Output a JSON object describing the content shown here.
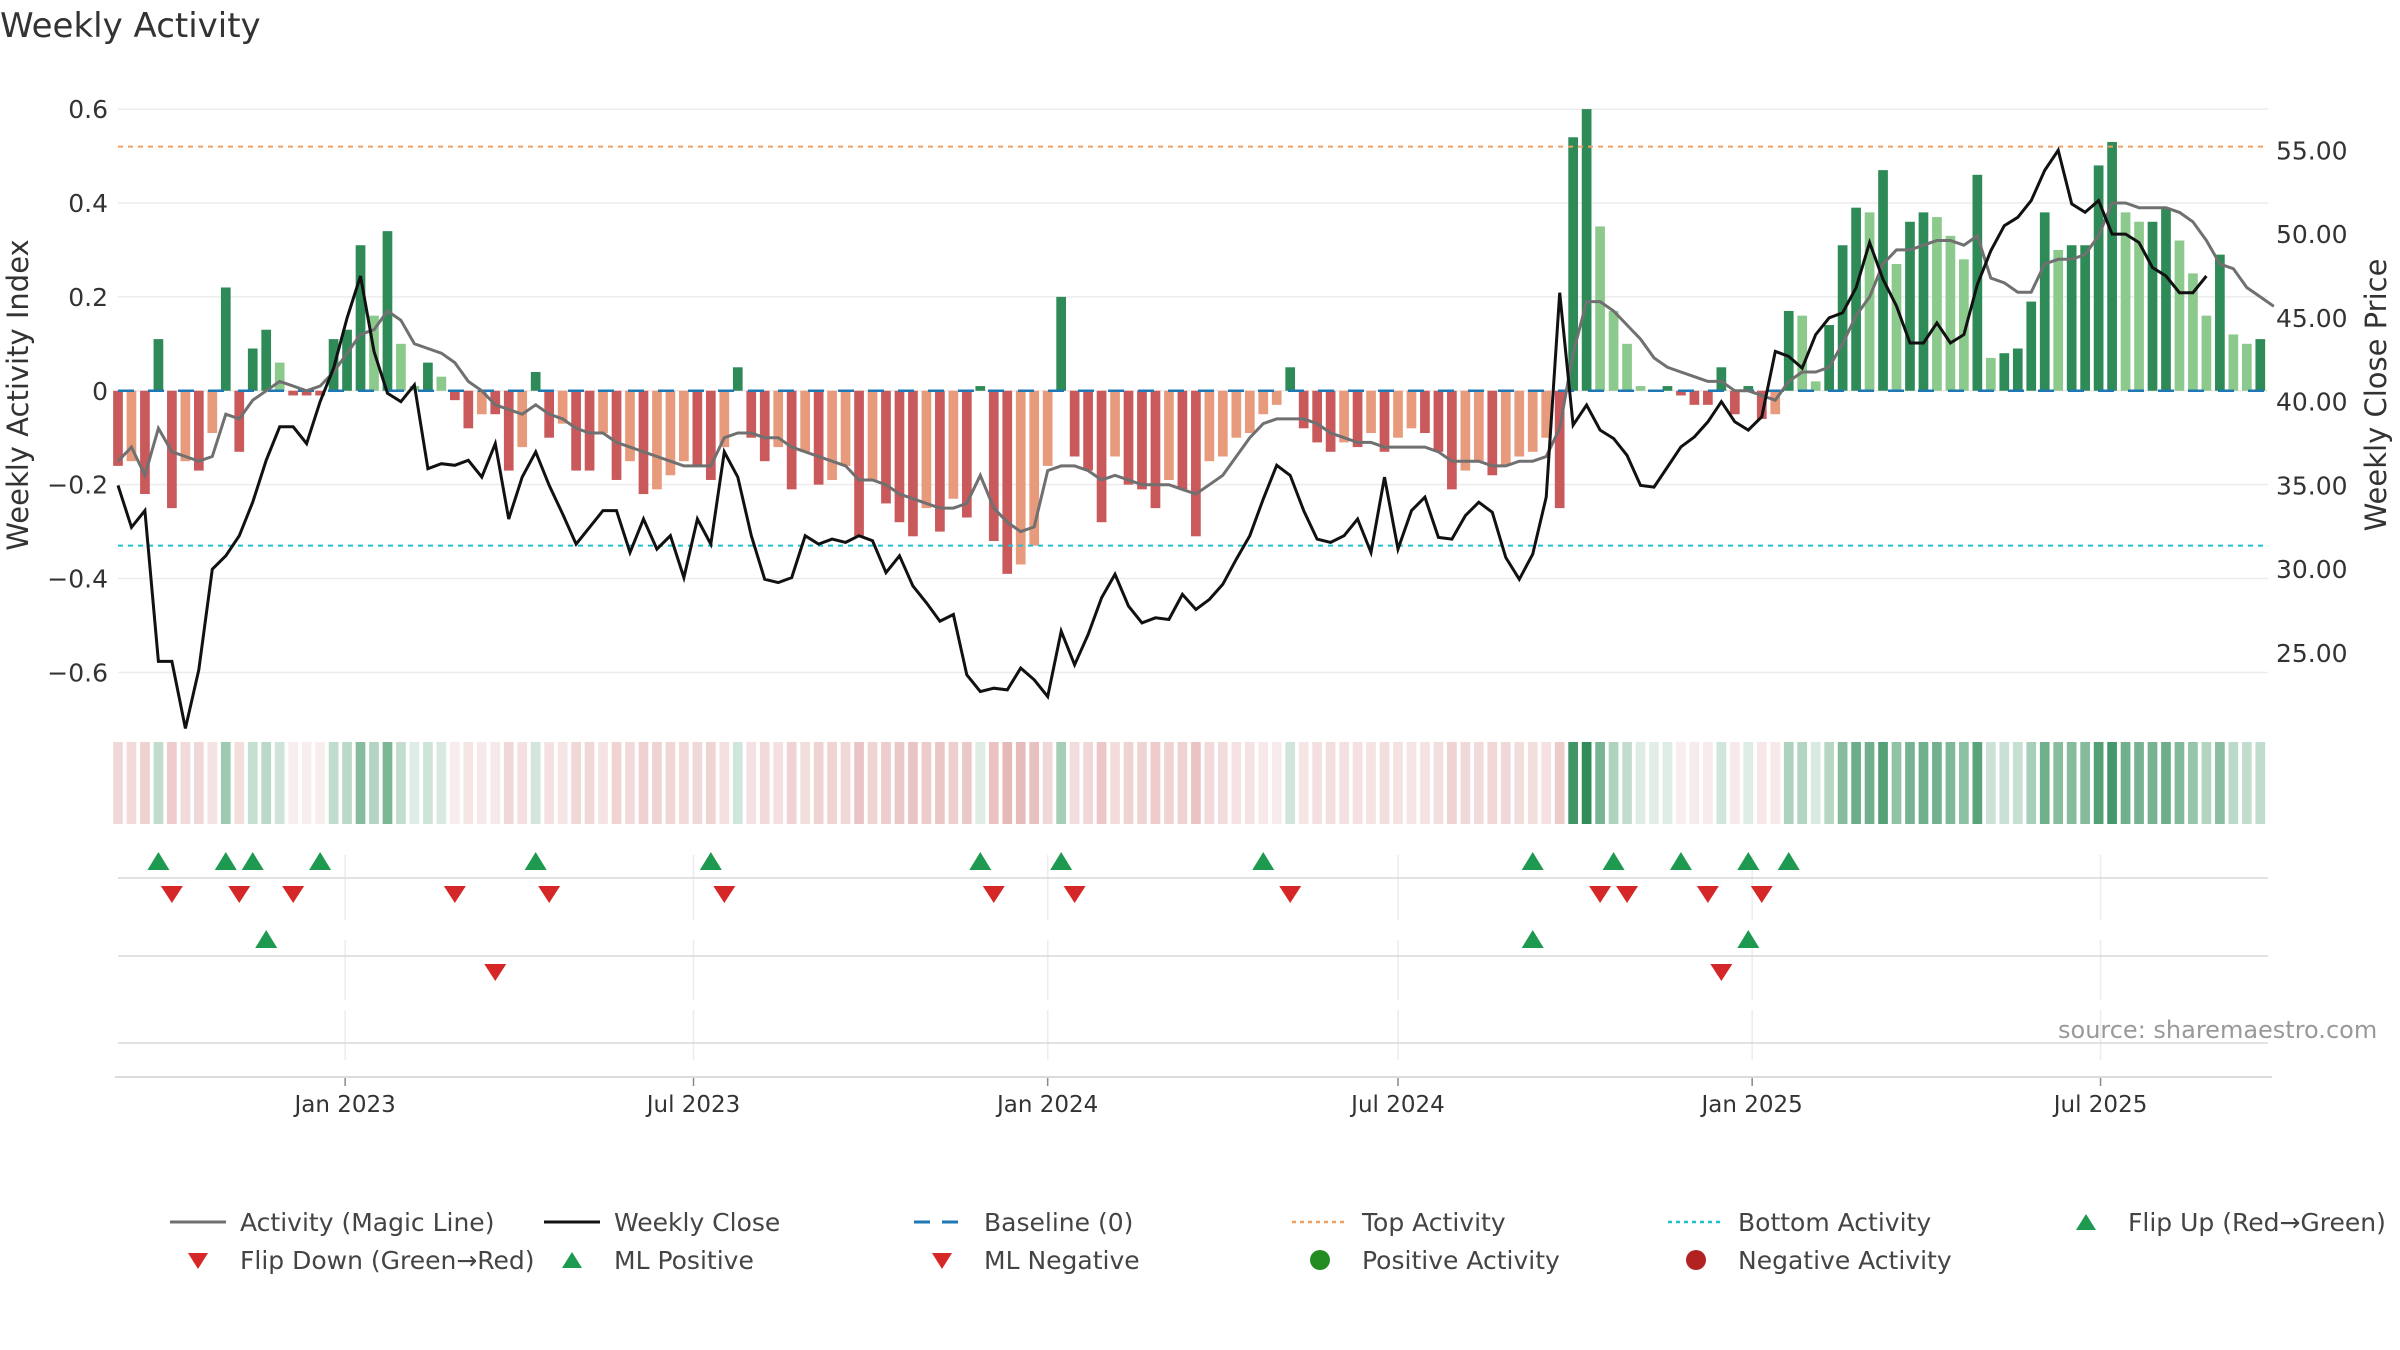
{
  "title": "Weekly Activity",
  "source": "source: sharemaestro.com",
  "colors": {
    "pos_dark": "#2e8b57",
    "pos_light": "#8cc98c",
    "neg_dark": "#c9595b",
    "neg_light": "#e89a7c",
    "magic": "#707070",
    "close": "#111111",
    "baseline": "#1f77b4",
    "top": "#f0a060",
    "bottom": "#20c0d0",
    "flip_up": "#1e9a50",
    "flip_down": "#d62728"
  },
  "chart_data": {
    "type": "bar+line",
    "title": "Weekly Activity",
    "y_left": {
      "label": "Weekly Activity Index",
      "range": [
        -0.68,
        0.63
      ],
      "ticks": [
        -0.6,
        -0.4,
        -0.2,
        0,
        0.2,
        0.4,
        0.6
      ],
      "tick_labels": [
        "−0.6",
        "−0.4",
        "−0.2",
        "0",
        "0.2",
        "0.4",
        "0.6"
      ]
    },
    "y_right": {
      "label": "Weekly Close Price",
      "range": [
        21.6,
        58.3
      ],
      "ticks": [
        25,
        30,
        35,
        40,
        45,
        50,
        55
      ],
      "tick_labels": [
        "25.00",
        "30.00",
        "35.00",
        "40.00",
        "45.00",
        "50.00",
        "55.00"
      ]
    },
    "x_axis": {
      "range": [
        "2022-09-05",
        "2025-09-26"
      ],
      "ticks": [
        {
          "date": "2023-01-01",
          "label": "Jan 2023"
        },
        {
          "date": "2023-07-01",
          "label": "Jul 2023"
        },
        {
          "date": "2024-01-01",
          "label": "Jan 2024"
        },
        {
          "date": "2024-07-01",
          "label": "Jul 2024"
        },
        {
          "date": "2025-01-01",
          "label": "Jan 2025"
        },
        {
          "date": "2025-07-01",
          "label": "Jul 2025"
        }
      ]
    },
    "start_week": "2022-09-05",
    "activity": [
      -0.16,
      -0.15,
      -0.22,
      0.11,
      -0.25,
      -0.15,
      -0.17,
      -0.09,
      0.22,
      -0.13,
      0.09,
      0.13,
      0.06,
      -0.01,
      -0.01,
      -0.01,
      0.11,
      0.13,
      0.31,
      0.16,
      0.34,
      0.1,
      0.01,
      0.06,
      0.03,
      -0.02,
      -0.08,
      -0.05,
      -0.05,
      -0.17,
      -0.12,
      0.04,
      -0.1,
      -0.07,
      -0.17,
      -0.17,
      -0.09,
      -0.19,
      -0.15,
      -0.22,
      -0.21,
      -0.18,
      -0.15,
      -0.16,
      -0.19,
      -0.12,
      0.05,
      -0.1,
      -0.15,
      -0.12,
      -0.21,
      -0.13,
      -0.2,
      -0.19,
      -0.16,
      -0.31,
      -0.19,
      -0.24,
      -0.28,
      -0.31,
      -0.25,
      -0.3,
      -0.23,
      -0.27,
      0.01,
      -0.32,
      -0.39,
      -0.37,
      -0.33,
      -0.16,
      0.2,
      -0.14,
      -0.17,
      -0.28,
      -0.14,
      -0.2,
      -0.21,
      -0.25,
      -0.19,
      -0.21,
      -0.31,
      -0.15,
      -0.14,
      -0.1,
      -0.09,
      -0.05,
      -0.03,
      0.05,
      -0.08,
      -0.11,
      -0.13,
      -0.11,
      -0.12,
      -0.09,
      -0.13,
      -0.1,
      -0.08,
      -0.09,
      -0.13,
      -0.21,
      -0.17,
      -0.15,
      -0.18,
      -0.16,
      -0.14,
      -0.13,
      -0.1,
      -0.25,
      0.54,
      0.6,
      0.35,
      0.17,
      0.1,
      0.01,
      0.0,
      0.01,
      -0.01,
      -0.03,
      -0.03,
      0.05,
      -0.05,
      0.01,
      -0.06,
      -0.05,
      0.17,
      0.16,
      0.02,
      0.14,
      0.31,
      0.39,
      0.38,
      0.47,
      0.27,
      0.36,
      0.38,
      0.37,
      0.33,
      0.28,
      0.46,
      0.07,
      0.08,
      0.09,
      0.19,
      0.38,
      0.3,
      0.31,
      0.31,
      0.48,
      0.53,
      0.38,
      0.36,
      0.36,
      0.39,
      0.32,
      0.25,
      0.16,
      0.29,
      0.12,
      0.1,
      0.11
    ],
    "weekly_close": [
      35.0,
      32.5,
      33.5,
      24.5,
      24.5,
      20.5,
      24.0,
      30.0,
      30.8,
      32.0,
      34.0,
      36.5,
      38.5,
      38.5,
      37.5,
      40.0,
      42.0,
      45.0,
      47.5,
      43.0,
      40.5,
      40.0,
      41.0,
      36.0,
      36.3,
      36.2,
      36.5,
      35.5,
      37.5,
      33.0,
      35.5,
      37.0,
      35.0,
      33.3,
      31.5,
      32.5,
      33.5,
      33.5,
      31.0,
      33.0,
      31.2,
      32.0,
      29.5,
      33.0,
      31.5,
      37.0,
      35.5,
      32.0,
      29.4,
      29.2,
      29.5,
      32.0,
      31.5,
      31.8,
      31.6,
      32.0,
      31.7,
      29.8,
      30.8,
      29.0,
      28.0,
      26.9,
      27.3,
      23.7,
      22.7,
      22.9,
      22.8,
      24.1,
      23.4,
      22.4,
      26.3,
      24.3,
      26.1,
      28.3,
      29.7,
      27.8,
      26.8,
      27.1,
      27.0,
      28.5,
      27.6,
      28.2,
      29.1,
      30.6,
      32.0,
      34.2,
      36.2,
      35.6,
      33.5,
      31.8,
      31.6,
      32.0,
      33.0,
      31.0,
      35.5,
      31.2,
      33.5,
      34.3,
      31.9,
      31.8,
      33.2,
      34.0,
      33.4,
      30.7,
      29.4,
      30.9,
      34.3,
      46.5,
      38.6,
      39.8,
      38.3,
      37.8,
      36.8,
      35.0,
      34.9,
      36.1,
      37.3,
      37.9,
      38.8,
      40.0,
      38.8,
      38.3,
      39.1,
      43.0,
      42.7,
      42.0,
      44.0,
      45.0,
      45.3,
      46.8,
      49.5,
      47.3,
      45.7,
      43.5,
      43.5,
      44.7,
      43.5,
      44.0,
      47.0,
      49.0,
      50.5,
      51.0,
      52.0,
      53.8,
      55.0,
      51.8,
      51.3,
      52.0,
      50.0,
      50.0,
      49.5,
      48.0,
      47.5,
      46.5,
      46.5,
      47.5
    ],
    "magic_line": [
      -0.15,
      -0.12,
      -0.18,
      -0.08,
      -0.13,
      -0.14,
      -0.15,
      -0.14,
      -0.05,
      -0.06,
      -0.02,
      0.0,
      0.02,
      0.01,
      0.0,
      0.01,
      0.04,
      0.08,
      0.12,
      0.13,
      0.17,
      0.15,
      0.1,
      0.09,
      0.08,
      0.06,
      0.02,
      0.0,
      -0.03,
      -0.04,
      -0.05,
      -0.03,
      -0.05,
      -0.06,
      -0.08,
      -0.09,
      -0.09,
      -0.11,
      -0.12,
      -0.13,
      -0.14,
      -0.15,
      -0.16,
      -0.16,
      -0.16,
      -0.1,
      -0.09,
      -0.09,
      -0.1,
      -0.1,
      -0.12,
      -0.13,
      -0.14,
      -0.15,
      -0.16,
      -0.19,
      -0.19,
      -0.2,
      -0.22,
      -0.23,
      -0.24,
      -0.25,
      -0.25,
      -0.24,
      -0.18,
      -0.25,
      -0.28,
      -0.3,
      -0.29,
      -0.17,
      -0.16,
      -0.16,
      -0.17,
      -0.19,
      -0.18,
      -0.19,
      -0.2,
      -0.2,
      -0.2,
      -0.21,
      -0.22,
      -0.2,
      -0.18,
      -0.14,
      -0.1,
      -0.07,
      -0.06,
      -0.06,
      -0.06,
      -0.07,
      -0.09,
      -0.1,
      -0.11,
      -0.11,
      -0.12,
      -0.12,
      -0.12,
      -0.12,
      -0.13,
      -0.15,
      -0.15,
      -0.15,
      -0.16,
      -0.16,
      -0.15,
      -0.15,
      -0.14,
      -0.08,
      0.08,
      0.19,
      0.19,
      0.17,
      0.14,
      0.11,
      0.07,
      0.05,
      0.04,
      0.03,
      0.02,
      0.02,
      0.0,
      0.0,
      -0.01,
      -0.02,
      0.02,
      0.04,
      0.04,
      0.05,
      0.1,
      0.16,
      0.2,
      0.27,
      0.3,
      0.3,
      0.31,
      0.32,
      0.32,
      0.31,
      0.33,
      0.24,
      0.23,
      0.21,
      0.21,
      0.27,
      0.28,
      0.28,
      0.29,
      0.33,
      0.4,
      0.4,
      0.39,
      0.39,
      0.39,
      0.38,
      0.36,
      0.32,
      0.27,
      0.26,
      0.22,
      0.2,
      0.18
    ],
    "top_activity": 0.52,
    "bottom_activity": -0.33,
    "baseline": 0,
    "flip_up_weeks": [
      3,
      8,
      10,
      15,
      31,
      44,
      64,
      70,
      85,
      105,
      111,
      116,
      121,
      124
    ],
    "flip_down_weeks": [
      4,
      9,
      13,
      25,
      32,
      45,
      65,
      71,
      87,
      110,
      112,
      118,
      122
    ],
    "ml_positive_weeks": [
      11,
      105,
      121
    ],
    "ml_negative_weeks": [
      28,
      119
    ]
  },
  "legend": [
    {
      "key": "magic",
      "label": "Activity (Magic Line)",
      "symbol": "line"
    },
    {
      "key": "close",
      "label": "Weekly Close",
      "symbol": "line"
    },
    {
      "key": "baseline",
      "label": "Baseline (0)",
      "symbol": "dash"
    },
    {
      "key": "top",
      "label": "Top Activity",
      "symbol": "dot-line"
    },
    {
      "key": "bottom",
      "label": "Bottom Activity",
      "symbol": "dot-line"
    },
    {
      "key": "flip_up",
      "label": "Flip Up (Red→Green)",
      "symbol": "tri-up"
    },
    {
      "key": "flip_down",
      "label": "Flip Down (Green→Red)",
      "symbol": "tri-down"
    },
    {
      "key": "flip_up",
      "label": "ML Positive",
      "symbol": "tri-up"
    },
    {
      "key": "flip_down",
      "label": "ML Negative",
      "symbol": "tri-down"
    },
    {
      "key": "pos_circle",
      "label": "Positive Activity",
      "symbol": "circle",
      "color": "#228b22"
    },
    {
      "key": "neg_circle",
      "label": "Negative Activity",
      "symbol": "circle",
      "color": "#b22222"
    }
  ]
}
